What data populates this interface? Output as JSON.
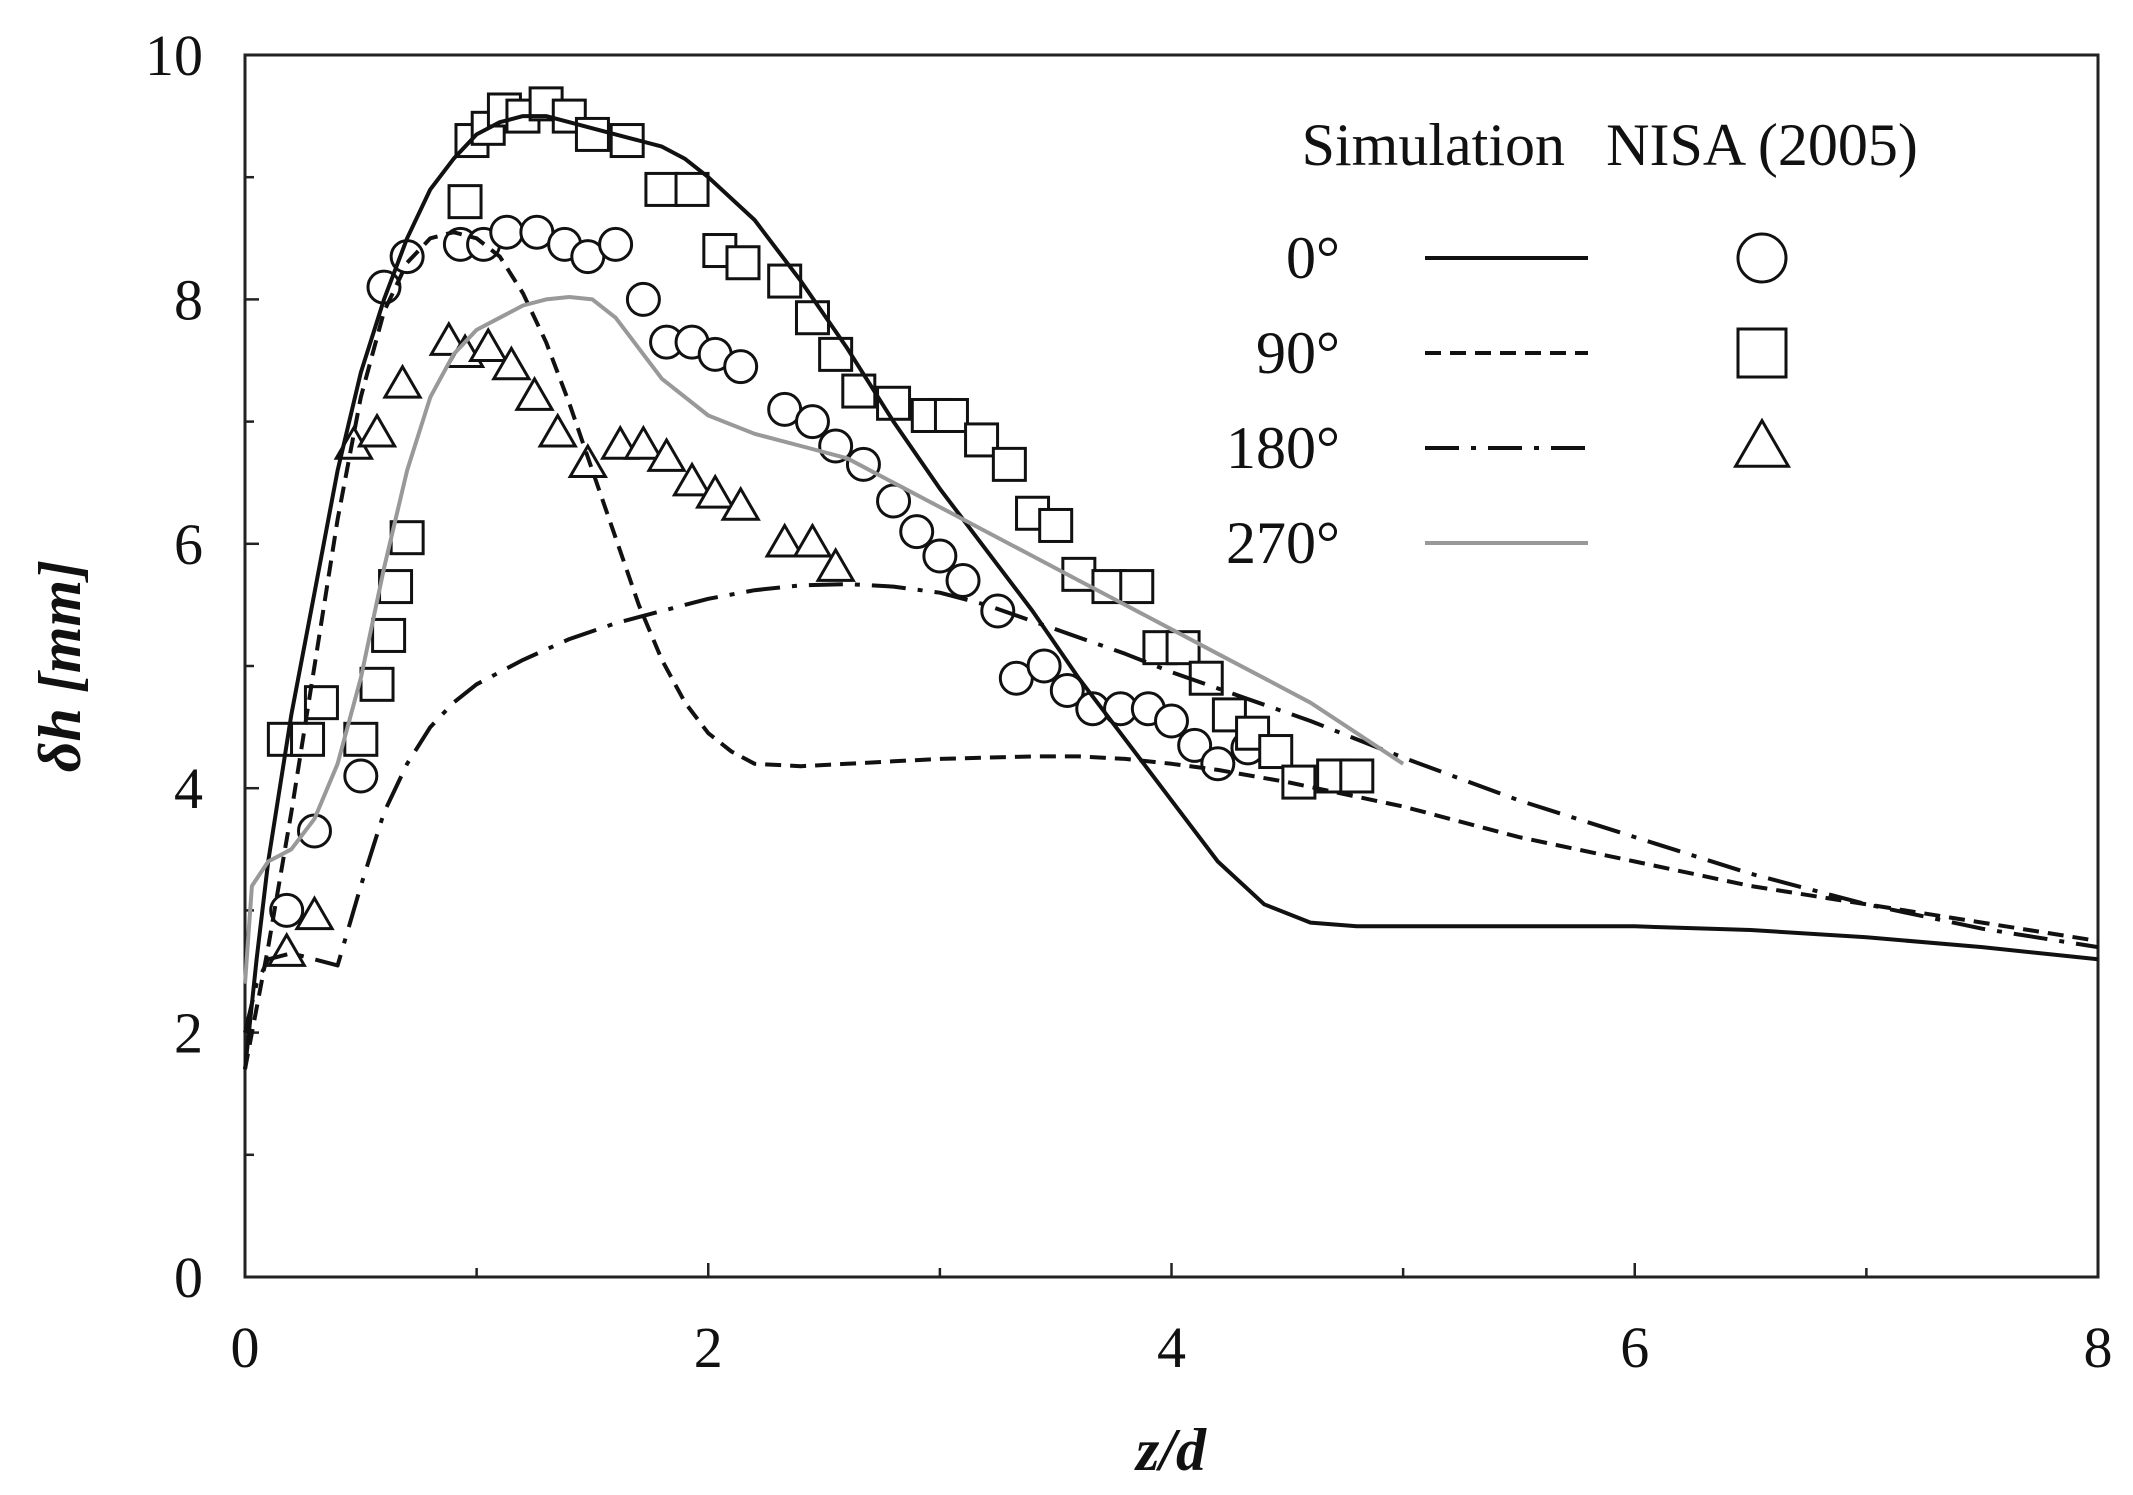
{
  "chart_data": {
    "type": "line",
    "title": "",
    "xlabel": "z/d",
    "ylabel": "δh [mm]",
    "xlim": [
      0,
      8
    ],
    "ylim": [
      0,
      10
    ],
    "x_ticks": [
      0,
      2,
      4,
      6,
      8
    ],
    "y_ticks": [
      0,
      2,
      4,
      6,
      8,
      10
    ],
    "grid": false,
    "legend": {
      "position": "top-right",
      "sim_header": "Simulation",
      "exp_header": "NISA (2005)"
    },
    "series": [
      {
        "name": "0°",
        "kind": "simulation",
        "style": "solid",
        "color": "#111111",
        "x": [
          0.0,
          0.05,
          0.1,
          0.2,
          0.3,
          0.4,
          0.5,
          0.6,
          0.7,
          0.8,
          0.9,
          1.0,
          1.1,
          1.2,
          1.3,
          1.4,
          1.5,
          1.6,
          1.7,
          1.8,
          1.9,
          2.0,
          2.2,
          2.4,
          2.6,
          2.8,
          3.0,
          3.2,
          3.4,
          3.6,
          3.8,
          4.0,
          4.2,
          4.4,
          4.6,
          4.8,
          5.0,
          5.5,
          6.0,
          6.5,
          7.0,
          7.5,
          8.0
        ],
        "y": [
          1.7,
          2.6,
          3.4,
          4.6,
          5.6,
          6.6,
          7.4,
          8.0,
          8.5,
          8.9,
          9.15,
          9.35,
          9.45,
          9.5,
          9.5,
          9.45,
          9.4,
          9.35,
          9.3,
          9.25,
          9.15,
          9.0,
          8.65,
          8.15,
          7.6,
          7.0,
          6.45,
          5.95,
          5.45,
          4.9,
          4.4,
          3.9,
          3.4,
          3.05,
          2.9,
          2.87,
          2.87,
          2.87,
          2.87,
          2.84,
          2.78,
          2.7,
          2.6
        ]
      },
      {
        "name": "90°",
        "kind": "simulation",
        "style": "dashed",
        "color": "#111111",
        "x": [
          0.0,
          0.05,
          0.1,
          0.2,
          0.3,
          0.4,
          0.5,
          0.6,
          0.7,
          0.8,
          0.9,
          1.0,
          1.1,
          1.2,
          1.3,
          1.4,
          1.5,
          1.6,
          1.7,
          1.8,
          1.9,
          2.0,
          2.1,
          2.2,
          2.4,
          2.6,
          2.8,
          3.0,
          3.2,
          3.4,
          3.6,
          3.8,
          4.0,
          4.2,
          4.5,
          5.0,
          5.5,
          6.0,
          6.5,
          7.0,
          7.5,
          8.0
        ],
        "y": [
          1.7,
          2.2,
          2.7,
          3.8,
          5.0,
          6.2,
          7.2,
          7.9,
          8.3,
          8.5,
          8.55,
          8.5,
          8.35,
          8.05,
          7.65,
          7.15,
          6.6,
          6.05,
          5.5,
          5.05,
          4.7,
          4.45,
          4.3,
          4.2,
          4.18,
          4.2,
          4.22,
          4.24,
          4.25,
          4.26,
          4.26,
          4.24,
          4.2,
          4.15,
          4.05,
          3.85,
          3.6,
          3.4,
          3.2,
          3.05,
          2.9,
          2.75
        ]
      },
      {
        "name": "180°",
        "kind": "simulation",
        "style": "dashdot",
        "color": "#111111",
        "x": [
          0.0,
          0.05,
          0.1,
          0.2,
          0.3,
          0.4,
          0.5,
          0.6,
          0.7,
          0.8,
          0.9,
          1.0,
          1.2,
          1.4,
          1.6,
          1.8,
          2.0,
          2.2,
          2.4,
          2.6,
          2.8,
          3.0,
          3.2,
          3.5,
          3.8,
          4.0,
          4.3,
          4.6,
          5.0,
          5.5,
          6.0,
          6.5,
          7.0,
          7.5,
          8.0
        ],
        "y": [
          2.0,
          2.4,
          2.6,
          2.65,
          2.6,
          2.55,
          3.2,
          3.8,
          4.2,
          4.5,
          4.7,
          4.85,
          5.05,
          5.22,
          5.35,
          5.45,
          5.55,
          5.62,
          5.66,
          5.67,
          5.65,
          5.6,
          5.5,
          5.3,
          5.1,
          4.95,
          4.75,
          4.55,
          4.25,
          3.9,
          3.6,
          3.3,
          3.05,
          2.85,
          2.7
        ]
      },
      {
        "name": "270°",
        "kind": "simulation",
        "style": "solid",
        "color": "#999999",
        "x": [
          0.0,
          0.03,
          0.1,
          0.2,
          0.3,
          0.4,
          0.5,
          0.6,
          0.7,
          0.8,
          0.9,
          1.0,
          1.1,
          1.2,
          1.3,
          1.4,
          1.5,
          1.6,
          1.7,
          1.8,
          2.0,
          2.2,
          2.4,
          2.6,
          2.8,
          3.0,
          3.2,
          3.4,
          3.6,
          3.8,
          4.0,
          4.2,
          4.4,
          4.6,
          4.8,
          5.0
        ],
        "y": [
          2.4,
          3.2,
          3.4,
          3.5,
          3.75,
          4.2,
          4.9,
          5.8,
          6.6,
          7.2,
          7.55,
          7.75,
          7.85,
          7.95,
          8.0,
          8.02,
          8.0,
          7.85,
          7.6,
          7.35,
          7.05,
          6.9,
          6.8,
          6.7,
          6.5,
          6.3,
          6.1,
          5.9,
          5.7,
          5.5,
          5.3,
          5.1,
          4.9,
          4.7,
          4.45,
          4.2
        ]
      },
      {
        "name": "0°",
        "kind": "experiment",
        "marker": "circle",
        "x": [
          0.18,
          0.3,
          0.5,
          0.6,
          0.7,
          0.93,
          1.03,
          1.13,
          1.26,
          1.38,
          1.48,
          1.6,
          1.72,
          1.82,
          1.93,
          2.03,
          2.14,
          2.33,
          2.45,
          2.55,
          2.67,
          2.8,
          2.9,
          3.0,
          3.1,
          3.25,
          3.33,
          3.45,
          3.55,
          3.66,
          3.78,
          3.9,
          4.0,
          4.1,
          4.2,
          4.33
        ],
        "y": [
          3.0,
          3.65,
          4.1,
          8.1,
          8.35,
          8.45,
          8.45,
          8.55,
          8.55,
          8.45,
          8.35,
          8.45,
          8.0,
          7.65,
          7.65,
          7.55,
          7.45,
          7.1,
          7.0,
          6.8,
          6.65,
          6.35,
          6.1,
          5.9,
          5.7,
          5.45,
          4.9,
          5.0,
          4.8,
          4.65,
          4.65,
          4.65,
          4.55,
          4.35,
          4.2,
          4.33
        ]
      },
      {
        "name": "90°",
        "kind": "experiment",
        "marker": "square",
        "x": [
          0.17,
          0.27,
          0.33,
          0.5,
          0.57,
          0.62,
          0.65,
          0.7,
          0.95,
          0.98,
          1.05,
          1.12,
          1.2,
          1.3,
          1.4,
          1.5,
          1.65,
          1.8,
          1.93,
          2.05,
          2.15,
          2.33,
          2.45,
          2.55,
          2.65,
          2.8,
          2.95,
          3.05,
          3.18,
          3.3,
          3.4,
          3.5,
          3.6,
          3.73,
          3.85,
          3.95,
          4.05,
          4.15,
          4.25,
          4.35,
          4.45,
          4.55,
          4.7,
          4.8
        ],
        "y": [
          4.4,
          4.4,
          4.7,
          4.4,
          4.85,
          5.25,
          5.65,
          6.05,
          8.8,
          9.3,
          9.4,
          9.55,
          9.5,
          9.6,
          9.5,
          9.35,
          9.3,
          8.9,
          8.9,
          8.4,
          8.3,
          8.15,
          7.85,
          7.55,
          7.25,
          7.15,
          7.05,
          7.05,
          6.85,
          6.65,
          6.25,
          6.15,
          5.75,
          5.65,
          5.65,
          5.15,
          5.15,
          4.9,
          4.6,
          4.45,
          4.3,
          4.05,
          4.1,
          4.1
        ]
      },
      {
        "name": "180°",
        "kind": "experiment",
        "marker": "triangle",
        "x": [
          0.18,
          0.3,
          0.47,
          0.57,
          0.68,
          0.88,
          0.95,
          1.05,
          1.15,
          1.25,
          1.35,
          1.48,
          1.62,
          1.72,
          1.82,
          1.93,
          2.03,
          2.14,
          2.33,
          2.45,
          2.55
        ],
        "y": [
          2.65,
          2.95,
          6.8,
          6.9,
          7.3,
          7.65,
          7.55,
          7.6,
          7.45,
          7.2,
          6.9,
          6.65,
          6.8,
          6.8,
          6.7,
          6.5,
          6.4,
          6.3,
          6.0,
          6.0,
          5.8
        ]
      }
    ]
  }
}
